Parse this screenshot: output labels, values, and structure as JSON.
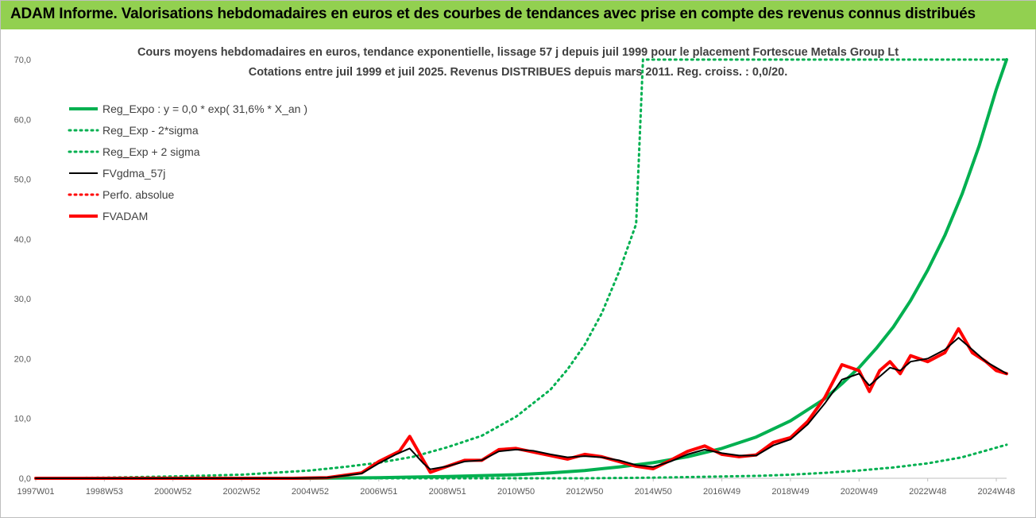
{
  "banner": {
    "title": "ADAM Informe. Valorisations hebdomadaires en euros et des courbes de tendances avec prise en compte des revenus connus distribués",
    "background": "#92d050"
  },
  "chart_data": {
    "type": "line",
    "title_line1": "Cours moyens hebdomadaires en euros, tendance exponentielle, lissage 57 j depuis juil 1999 pour le placement Fortescue Metals Group Lt",
    "title_line2": "Cotations entre juil 1999 et juil 2025. Revenus DISTRIBUES depuis mars 2011. Reg. croiss. : 0,0/20.",
    "xlabel": "",
    "ylabel": "",
    "ylim": [
      0,
      70
    ],
    "xlim": [
      1997.0,
      2025.3
    ],
    "grid": false,
    "legend_position": "top-left",
    "y_ticks": [
      "0,0",
      "10,0",
      "20,0",
      "30,0",
      "40,0",
      "50,0",
      "60,0",
      "70,0"
    ],
    "y_tick_values": [
      0,
      10,
      20,
      30,
      40,
      50,
      60,
      70
    ],
    "x_ticks": [
      "1997W01",
      "1998W53",
      "2000W52",
      "2002W52",
      "2004W52",
      "2006W51",
      "2008W51",
      "2010W50",
      "2012W50",
      "2014W50",
      "2016W49",
      "2018W49",
      "2020W49",
      "2022W48",
      "2024W48"
    ],
    "x_tick_values": [
      1997.0,
      1999.0,
      2001.0,
      2003.0,
      2005.0,
      2007.0,
      2009.0,
      2011.0,
      2013.0,
      2015.0,
      2017.0,
      2019.0,
      2021.0,
      2023.0,
      2025.0
    ],
    "series": [
      {
        "name": "Reg_Expo : y = 0,0 * exp( 31,6% *  X_an )",
        "color": "#00b050",
        "style": "solid-thick",
        "x": [
          1997.0,
          2005.0,
          2007.0,
          2009.0,
          2011.0,
          2012.0,
          2013.0,
          2014.0,
          2015.0,
          2016.0,
          2017.0,
          2018.0,
          2019.0,
          2020.0,
          2020.5,
          2021.0,
          2021.5,
          2022.0,
          2022.5,
          2023.0,
          2023.5,
          2024.0,
          2024.5,
          2025.0,
          2025.3
        ],
        "values": [
          0.0,
          0.0,
          0.1,
          0.3,
          0.6,
          0.9,
          1.3,
          1.9,
          2.6,
          3.6,
          5.0,
          6.9,
          9.6,
          13.3,
          15.8,
          18.5,
          21.7,
          25.3,
          29.7,
          34.8,
          40.6,
          47.5,
          55.6,
          65.0,
          70.0
        ]
      },
      {
        "name": "Reg_Exp - 2*sigma",
        "color": "#00b050",
        "style": "dotted",
        "x": [
          1997.0,
          2013.0,
          2015.0,
          2016.0,
          2017.0,
          2018.0,
          2019.0,
          2020.0,
          2021.0,
          2022.0,
          2023.0,
          2024.0,
          2025.3
        ],
        "values": [
          0.0,
          0.0,
          0.1,
          0.2,
          0.3,
          0.4,
          0.6,
          0.9,
          1.3,
          1.8,
          2.5,
          3.5,
          5.6
        ]
      },
      {
        "name": "Reg_Exp + 2 sigma",
        "color": "#00b050",
        "style": "dotted",
        "x": [
          1997.0,
          1999.0,
          2001.0,
          2003.0,
          2005.0,
          2006.0,
          2007.0,
          2008.0,
          2009.0,
          2010.0,
          2011.0,
          2012.0,
          2012.5,
          2013.0,
          2013.5,
          2014.0,
          2014.5,
          2014.7,
          2021.0,
          2025.3
        ],
        "values": [
          0.0,
          0.1,
          0.3,
          0.6,
          1.3,
          1.9,
          2.6,
          3.6,
          5.2,
          7.1,
          10.3,
          14.8,
          18.2,
          22.3,
          27.6,
          34.5,
          42.5,
          70.0,
          70.0,
          70.0
        ]
      },
      {
        "name": "FVgdma_57j",
        "color": "#000000",
        "style": "solid",
        "x": [
          1997.0,
          2004.5,
          2005.5,
          2006.5,
          2007.0,
          2007.5,
          2007.9,
          2008.3,
          2008.5,
          2009.0,
          2009.5,
          2010.0,
          2010.5,
          2011.0,
          2011.5,
          2012.0,
          2012.5,
          2013.0,
          2013.5,
          2014.0,
          2014.5,
          2015.0,
          2015.5,
          2016.0,
          2016.5,
          2017.0,
          2017.5,
          2018.0,
          2018.5,
          2019.0,
          2019.5,
          2020.0,
          2020.5,
          2021.0,
          2021.3,
          2021.6,
          2021.9,
          2022.2,
          2022.5,
          2023.0,
          2023.5,
          2023.9,
          2024.3,
          2024.7,
          2025.0,
          2025.3
        ],
        "values": [
          0.0,
          0.0,
          0.1,
          0.8,
          2.5,
          4.0,
          5.0,
          2.5,
          1.5,
          2.0,
          2.8,
          3.0,
          4.5,
          4.8,
          4.6,
          4.0,
          3.5,
          3.7,
          3.5,
          3.0,
          2.2,
          1.9,
          2.8,
          4.0,
          4.8,
          4.2,
          3.8,
          3.8,
          5.5,
          6.5,
          9.0,
          12.5,
          16.5,
          17.5,
          15.5,
          17.0,
          18.5,
          18.0,
          19.5,
          20.0,
          21.5,
          23.5,
          21.5,
          19.5,
          18.5,
          17.5
        ]
      },
      {
        "name": "Perfo. absolue",
        "color": "#ff0000",
        "style": "dotted",
        "x": [
          1997.0,
          2004.5,
          2005.5,
          2006.5,
          2007.0,
          2007.6,
          2007.9,
          2008.3,
          2008.5,
          2009.0,
          2009.5,
          2010.0,
          2010.5,
          2011.0,
          2011.5,
          2012.0,
          2012.5,
          2013.0,
          2013.5,
          2014.0,
          2014.5,
          2015.0,
          2015.5,
          2016.0,
          2016.5,
          2017.0,
          2017.5,
          2018.0,
          2018.5,
          2019.0,
          2019.5,
          2020.0,
          2020.5,
          2021.0,
          2021.3,
          2021.6,
          2021.9,
          2022.2,
          2022.5,
          2023.0,
          2023.5,
          2023.9,
          2024.3,
          2024.7,
          2025.0,
          2025.3
        ],
        "values": [
          0.0,
          0.0,
          0.1,
          0.9,
          2.8,
          4.5,
          7.0,
          3.0,
          1.0,
          2.0,
          3.0,
          3.0,
          4.8,
          5.0,
          4.4,
          3.8,
          3.2,
          4.0,
          3.6,
          2.8,
          2.0,
          1.6,
          3.0,
          4.5,
          5.4,
          4.0,
          3.6,
          3.9,
          6.0,
          6.8,
          9.5,
          13.5,
          19.0,
          18.0,
          14.5,
          18.0,
          19.5,
          17.5,
          20.5,
          19.5,
          21.0,
          25.0,
          21.0,
          19.5,
          18.0,
          17.5
        ]
      },
      {
        "name": "FVADAM",
        "color": "#ff0000",
        "style": "solid-thick",
        "x": [
          1997.0,
          2004.5,
          2005.5,
          2006.5,
          2007.0,
          2007.6,
          2007.9,
          2008.3,
          2008.5,
          2009.0,
          2009.5,
          2010.0,
          2010.5,
          2011.0,
          2011.5,
          2012.0,
          2012.5,
          2013.0,
          2013.5,
          2014.0,
          2014.5,
          2015.0,
          2015.5,
          2016.0,
          2016.5,
          2017.0,
          2017.5,
          2018.0,
          2018.5,
          2019.0,
          2019.5,
          2020.0,
          2020.5,
          2021.0,
          2021.3,
          2021.6,
          2021.9,
          2022.2,
          2022.5,
          2023.0,
          2023.5,
          2023.9,
          2024.3,
          2024.7,
          2025.0,
          2025.3
        ],
        "values": [
          0.0,
          0.0,
          0.1,
          0.9,
          2.8,
          4.5,
          7.0,
          3.0,
          1.0,
          2.0,
          3.0,
          3.0,
          4.8,
          5.0,
          4.4,
          3.8,
          3.2,
          4.0,
          3.6,
          2.8,
          2.0,
          1.6,
          3.0,
          4.5,
          5.4,
          4.0,
          3.6,
          3.9,
          6.0,
          6.8,
          9.5,
          13.5,
          19.0,
          18.0,
          14.5,
          18.0,
          19.5,
          17.5,
          20.5,
          19.5,
          21.0,
          25.0,
          21.0,
          19.5,
          18.0,
          17.5
        ]
      }
    ]
  }
}
